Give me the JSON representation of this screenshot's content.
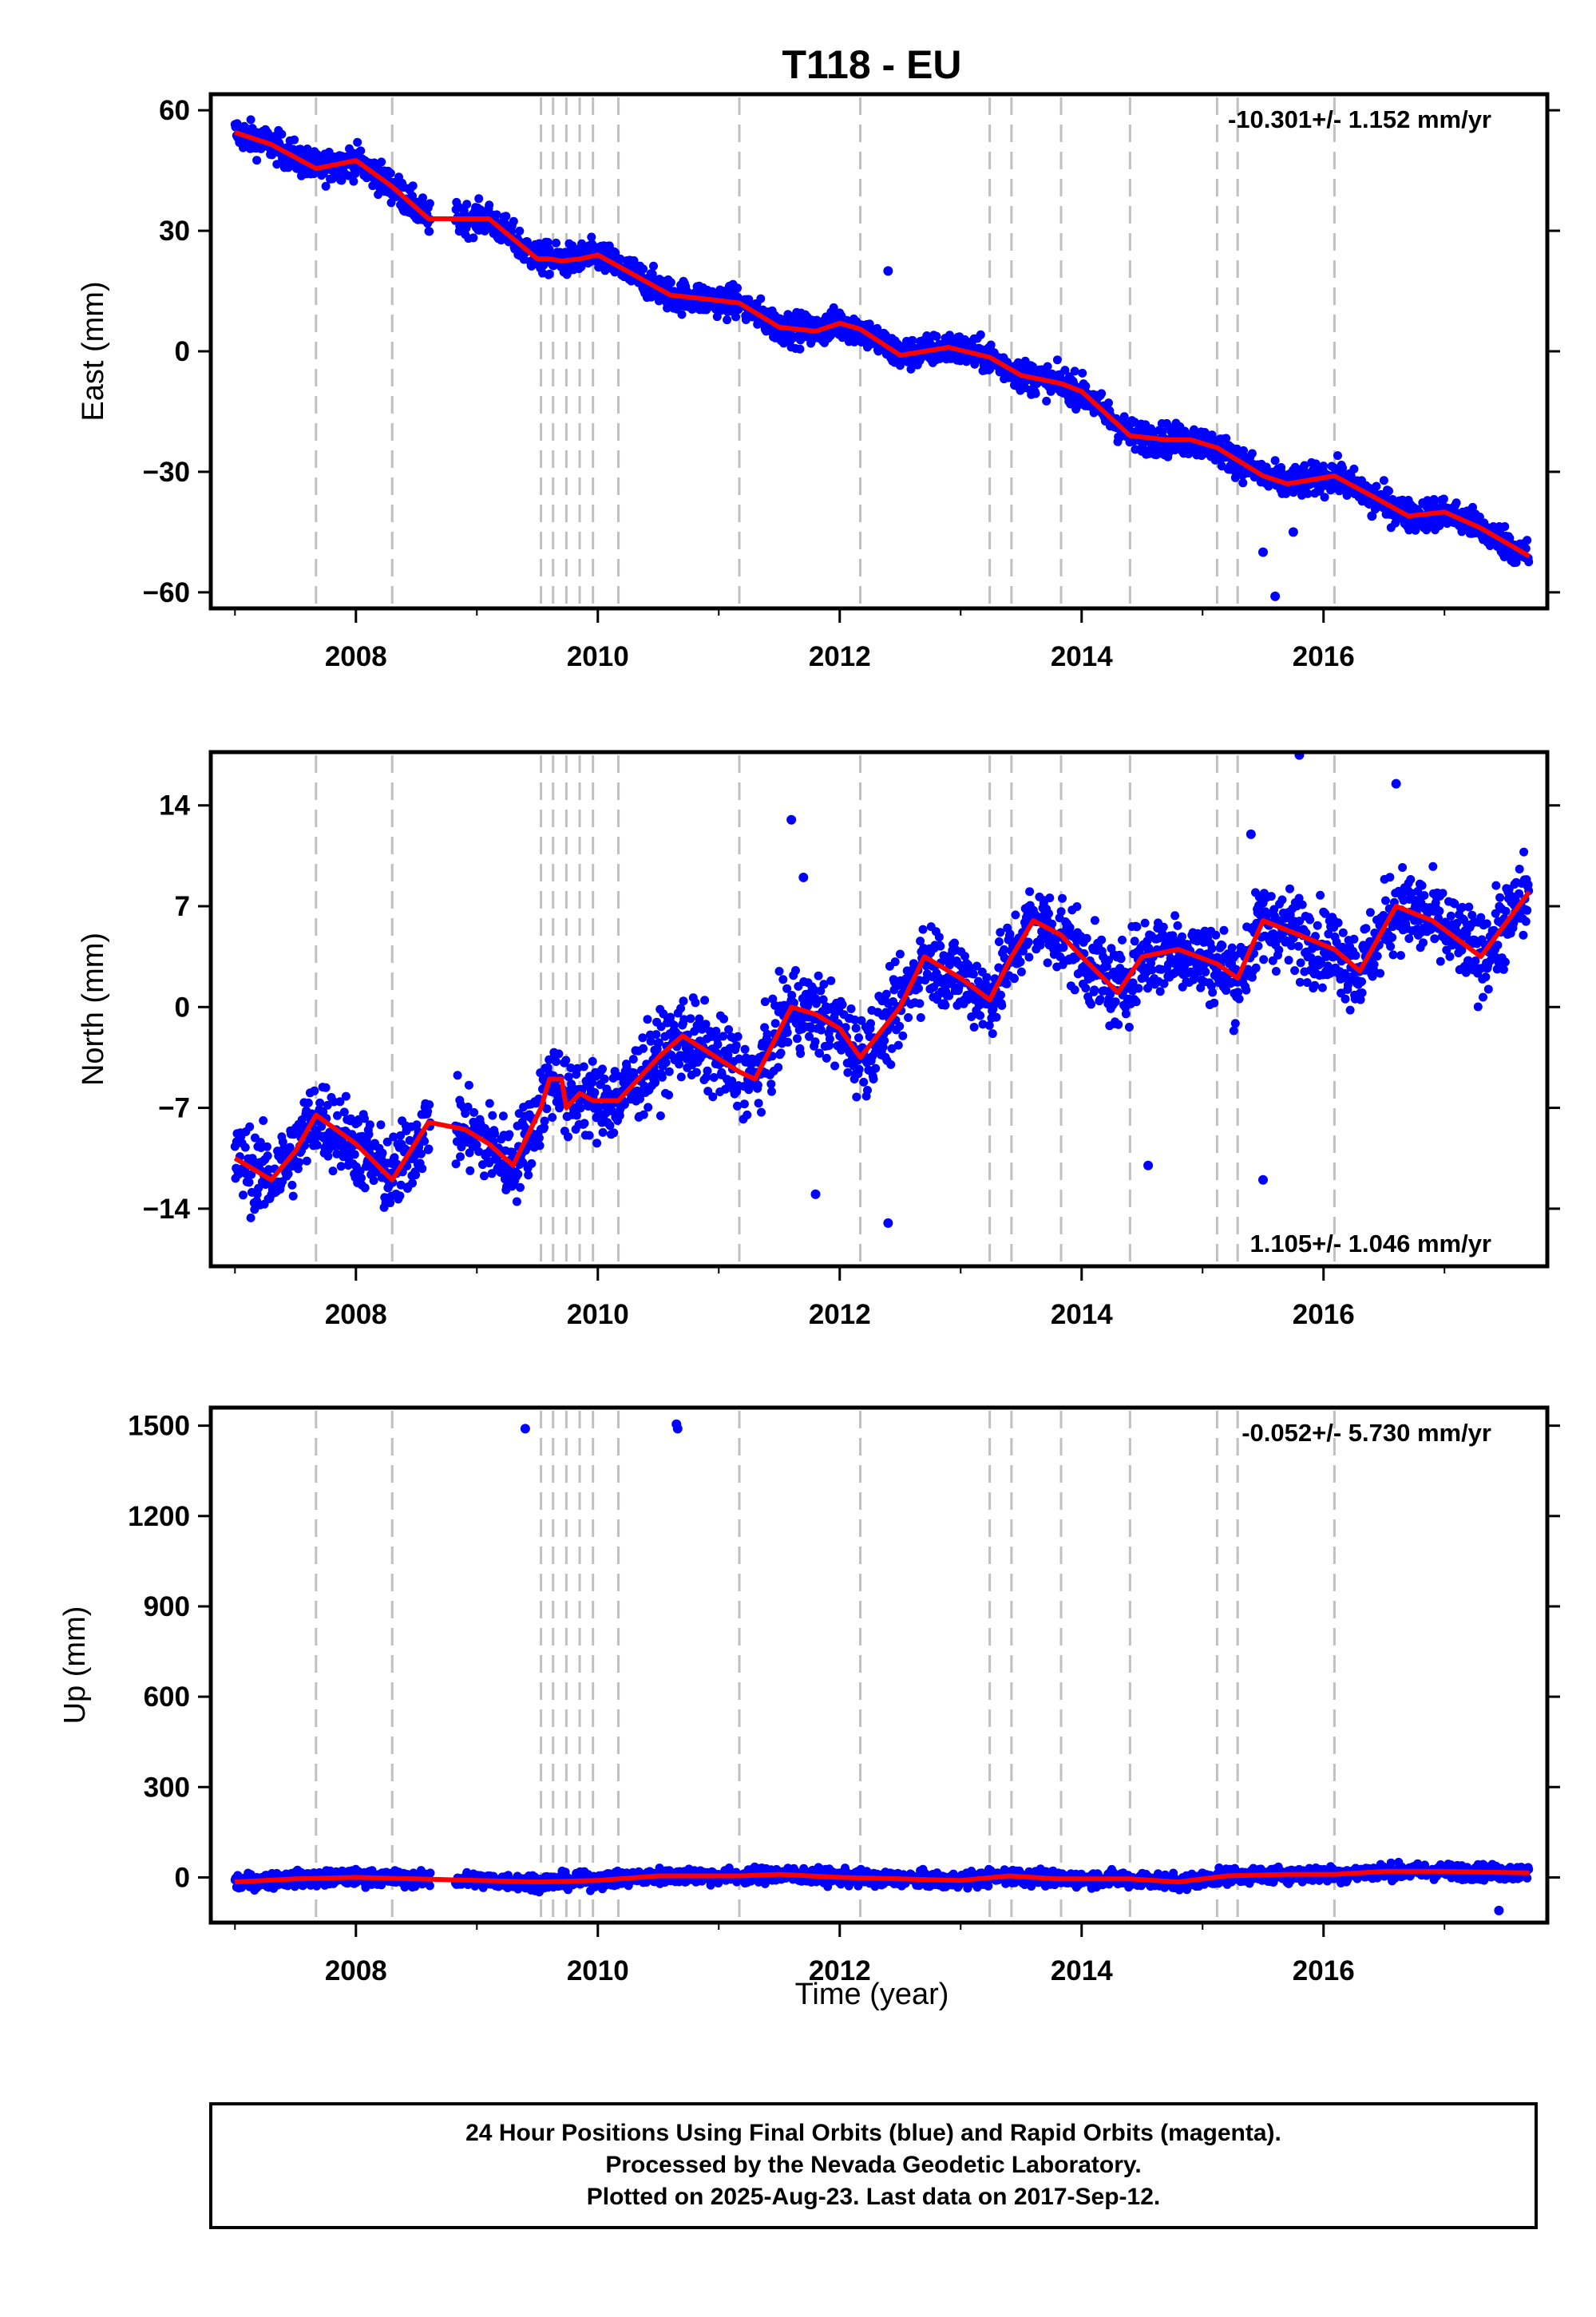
{
  "title": "T118 - EU",
  "xlabel": "Time (year)",
  "footer": [
    "24 Hour Positions Using Final Orbits (blue) and Rapid Orbits (magenta).",
    "Processed by the Nevada Geodetic Laboratory.",
    "Plotted on 2025-Aug-23. Last data on 2017-Sep-12."
  ],
  "colors": {
    "points": "#0000ff",
    "model": "#ff0000",
    "breaks": "#c0c0c0",
    "frame": "#000000"
  },
  "chart_data": [
    {
      "type": "scatter",
      "panel": "east",
      "ylabel": "East (mm)",
      "rate_text": "-10.301+/- 1.152 mm/yr",
      "rate_position": "top-right",
      "xlim": [
        2006.8,
        2017.85
      ],
      "ylim": [
        -64,
        64
      ],
      "xticks": [
        2008,
        2010,
        2012,
        2014,
        2016
      ],
      "xtick_labels": [
        "2008",
        "2010",
        "2012",
        "2014",
        "2016"
      ],
      "yticks": [
        60,
        30,
        0,
        -30,
        -60
      ],
      "ytick_labels": [
        "60",
        "30",
        "0",
        "−30",
        "−60"
      ],
      "break_years": [
        2007.67,
        2008.3,
        2009.53,
        2009.63,
        2009.74,
        2009.85,
        2009.96,
        2010.17,
        2011.17,
        2012.17,
        2013.24,
        2013.42,
        2013.83,
        2014.4,
        2015.12,
        2015.29,
        2016.09
      ],
      "gaps": [
        [
          2008.62,
          2008.82
        ],
        [
          2011.17,
          2011.2
        ]
      ],
      "model": [
        [
          2007.0,
          54.5
        ],
        [
          2007.3,
          51.5
        ],
        [
          2007.67,
          45.5
        ],
        [
          2008.0,
          47.5
        ],
        [
          2008.3,
          41
        ],
        [
          2008.6,
          33
        ],
        [
          2008.9,
          33
        ],
        [
          2009.1,
          33
        ],
        [
          2009.5,
          23
        ],
        [
          2009.6,
          23
        ],
        [
          2009.7,
          22.5
        ],
        [
          2009.85,
          23
        ],
        [
          2010.0,
          24
        ],
        [
          2010.3,
          19
        ],
        [
          2010.6,
          14
        ],
        [
          2010.9,
          13
        ],
        [
          2011.17,
          12
        ],
        [
          2011.5,
          6
        ],
        [
          2011.8,
          5
        ],
        [
          2012.0,
          7
        ],
        [
          2012.17,
          5.5
        ],
        [
          2012.5,
          -1
        ],
        [
          2012.9,
          1
        ],
        [
          2013.24,
          -1.5
        ],
        [
          2013.5,
          -6
        ],
        [
          2013.83,
          -8
        ],
        [
          2014.0,
          -10
        ],
        [
          2014.4,
          -21
        ],
        [
          2014.7,
          -22
        ],
        [
          2014.9,
          -22
        ],
        [
          2015.12,
          -24
        ],
        [
          2015.5,
          -31
        ],
        [
          2015.7,
          -33
        ],
        [
          2016.09,
          -31
        ],
        [
          2016.4,
          -36
        ],
        [
          2016.7,
          -41
        ],
        [
          2017.0,
          -40
        ],
        [
          2017.3,
          -44
        ],
        [
          2017.7,
          -51
        ]
      ],
      "outliers": [
        [
          2012.4,
          20
        ],
        [
          2015.5,
          -50
        ],
        [
          2015.6,
          -61
        ],
        [
          2015.75,
          -45
        ],
        [
          2016.4,
          -41
        ]
      ]
    },
    {
      "type": "scatter",
      "panel": "north",
      "ylabel": "North (mm)",
      "rate_text": "1.105+/- 1.046 mm/yr",
      "rate_position": "bottom-right",
      "xlim": [
        2006.8,
        2017.85
      ],
      "ylim": [
        -18,
        17.7
      ],
      "xticks": [
        2008,
        2010,
        2012,
        2014,
        2016
      ],
      "xtick_labels": [
        "2008",
        "2010",
        "2012",
        "2014",
        "2016"
      ],
      "yticks": [
        14,
        7,
        0,
        -7,
        -14
      ],
      "ytick_labels": [
        "14",
        "7",
        "0",
        "−7",
        "−14"
      ],
      "break_years": [
        2007.67,
        2008.3,
        2009.53,
        2009.63,
        2009.74,
        2009.85,
        2009.96,
        2010.17,
        2011.17,
        2012.17,
        2013.24,
        2013.42,
        2013.83,
        2014.4,
        2015.12,
        2015.29,
        2016.09
      ],
      "gaps": [
        [
          2008.62,
          2008.82
        ],
        [
          2011.17,
          2011.2
        ]
      ],
      "model": [
        [
          2007.0,
          -10.5
        ],
        [
          2007.3,
          -12
        ],
        [
          2007.5,
          -10
        ],
        [
          2007.67,
          -7.5
        ],
        [
          2008.0,
          -9.5
        ],
        [
          2008.3,
          -12
        ],
        [
          2008.6,
          -8
        ],
        [
          2008.9,
          -8.5
        ],
        [
          2009.1,
          -9.5
        ],
        [
          2009.3,
          -11
        ],
        [
          2009.53,
          -7
        ],
        [
          2009.6,
          -5
        ],
        [
          2009.7,
          -5
        ],
        [
          2009.74,
          -7
        ],
        [
          2009.85,
          -6
        ],
        [
          2009.96,
          -6.5
        ],
        [
          2010.17,
          -6.5
        ],
        [
          2010.5,
          -3.5
        ],
        [
          2010.7,
          -2
        ],
        [
          2011.17,
          -4.5
        ],
        [
          2011.3,
          -5
        ],
        [
          2011.6,
          0
        ],
        [
          2011.8,
          -0.5
        ],
        [
          2012.0,
          -1.5
        ],
        [
          2012.17,
          -3.5
        ],
        [
          2012.5,
          0
        ],
        [
          2012.7,
          3.5
        ],
        [
          2013.0,
          2
        ],
        [
          2013.24,
          0.5
        ],
        [
          2013.42,
          3.5
        ],
        [
          2013.6,
          6
        ],
        [
          2013.83,
          5
        ],
        [
          2014.0,
          3.5
        ],
        [
          2014.3,
          1
        ],
        [
          2014.5,
          3.5
        ],
        [
          2014.8,
          4
        ],
        [
          2015.12,
          3
        ],
        [
          2015.29,
          2
        ],
        [
          2015.5,
          6
        ],
        [
          2015.8,
          5
        ],
        [
          2016.09,
          4
        ],
        [
          2016.3,
          2.5
        ],
        [
          2016.6,
          7
        ],
        [
          2016.9,
          6
        ],
        [
          2017.3,
          3.5
        ],
        [
          2017.7,
          8
        ]
      ],
      "outliers": [
        [
          2011.6,
          13
        ],
        [
          2011.8,
          -13
        ],
        [
          2012.4,
          -15
        ],
        [
          2014.55,
          -11
        ],
        [
          2015.4,
          12
        ],
        [
          2015.5,
          -12
        ],
        [
          2015.8,
          17.5
        ],
        [
          2016.6,
          15.5
        ],
        [
          2011.7,
          9
        ]
      ]
    },
    {
      "type": "scatter",
      "panel": "up",
      "ylabel": "Up (mm)",
      "rate_text": "-0.052+/- 5.730 mm/yr",
      "rate_position": "top-right",
      "xlim": [
        2006.8,
        2017.85
      ],
      "ylim": [
        -150,
        1560
      ],
      "xticks": [
        2008,
        2010,
        2012,
        2014,
        2016
      ],
      "xtick_labels": [
        "2008",
        "2010",
        "2012",
        "2014",
        "2016"
      ],
      "yticks": [
        1500,
        1200,
        900,
        600,
        300,
        0
      ],
      "ytick_labels": [
        "1500",
        "1200",
        "900",
        "600",
        "300",
        "0"
      ],
      "break_years": [
        2007.67,
        2008.3,
        2009.53,
        2009.63,
        2009.74,
        2009.85,
        2009.96,
        2010.17,
        2011.17,
        2012.17,
        2013.24,
        2013.42,
        2013.83,
        2014.4,
        2015.12,
        2015.29,
        2016.09
      ],
      "gaps": [
        [
          2008.62,
          2008.82
        ],
        [
          2011.17,
          2011.2
        ]
      ],
      "model": [
        [
          2007.0,
          -15
        ],
        [
          2007.5,
          -5
        ],
        [
          2008.0,
          0
        ],
        [
          2008.5,
          -5
        ],
        [
          2009.0,
          -10
        ],
        [
          2009.5,
          -15
        ],
        [
          2010.0,
          -10
        ],
        [
          2010.5,
          5
        ],
        [
          2011.17,
          5
        ],
        [
          2011.5,
          10
        ],
        [
          2012.0,
          0
        ],
        [
          2012.5,
          -5
        ],
        [
          2013.0,
          -10
        ],
        [
          2013.4,
          5
        ],
        [
          2013.8,
          -5
        ],
        [
          2014.4,
          -5
        ],
        [
          2014.8,
          -15
        ],
        [
          2015.2,
          5
        ],
        [
          2015.7,
          10
        ],
        [
          2016.1,
          10
        ],
        [
          2016.5,
          20
        ],
        [
          2017.0,
          20
        ],
        [
          2017.7,
          15
        ]
      ],
      "outliers": [
        [
          2009.4,
          1490
        ],
        [
          2010.65,
          1505
        ],
        [
          2010.66,
          1490
        ],
        [
          2017.45,
          -110
        ]
      ]
    }
  ]
}
